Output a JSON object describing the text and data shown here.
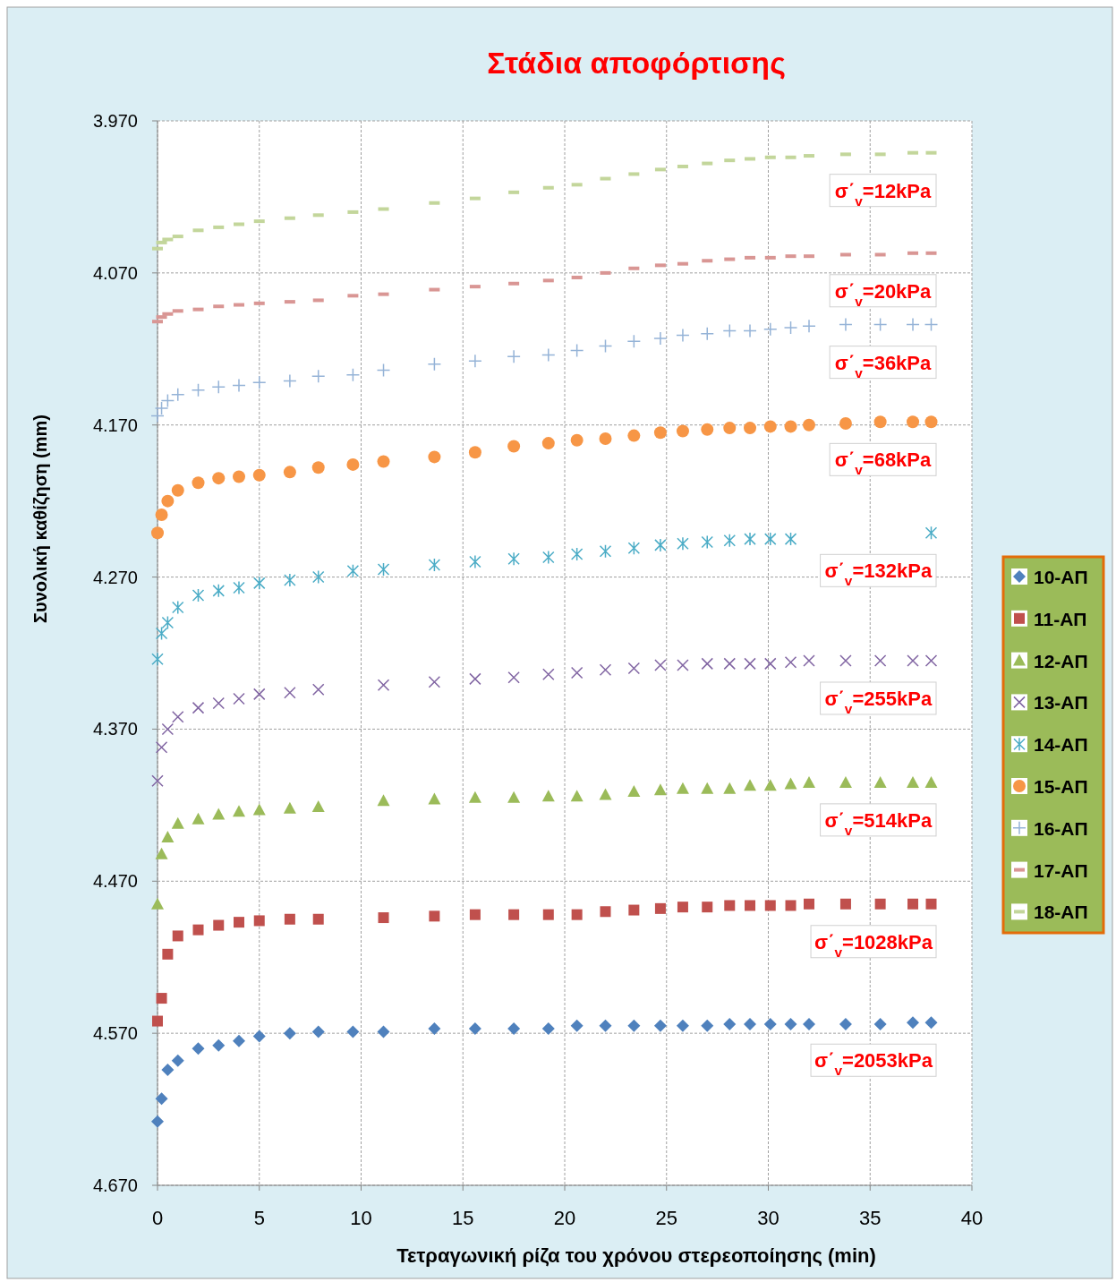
{
  "chart_data": {
    "type": "scatter",
    "title": "Στάδια αποφόρτισης",
    "xlabel": "Τετραγωνική ρίζα του χρόνου στερεοποίησης (min)",
    "ylabel": "Συνολική καθίζηση (mm)",
    "x": [
      0,
      0.2,
      0.5,
      1,
      2,
      3,
      4,
      5,
      6.5,
      7.9,
      9.6,
      11.1,
      13.6,
      15.6,
      17.5,
      19.2,
      20.6,
      22,
      23.4,
      24.7,
      25.8,
      27,
      28.1,
      29.1,
      30.1,
      31.1,
      32,
      33.8,
      35.5,
      37.1,
      38
    ],
    "xlim": [
      0,
      40
    ],
    "xticks": [
      0,
      5,
      10,
      15,
      20,
      25,
      30,
      35,
      40
    ],
    "ylim": [
      4.67,
      3.97
    ],
    "yticks": [
      {
        "value": 3.97,
        "label": "3.970"
      },
      {
        "value": 4.07,
        "label": "4.070"
      },
      {
        "value": 4.17,
        "label": "4.170"
      },
      {
        "value": 4.27,
        "label": "4.270"
      },
      {
        "value": 4.37,
        "label": "4.370"
      },
      {
        "value": 4.47,
        "label": "4.470"
      },
      {
        "value": 4.57,
        "label": "4.570"
      },
      {
        "value": 4.67,
        "label": "4.670"
      }
    ],
    "grid": true,
    "legend": "right",
    "series": [
      {
        "name": "10-ΑΠ",
        "color": "#4f81bd",
        "marker": "diamond",
        "values": [
          4.628,
          4.613,
          4.594,
          4.588,
          4.58,
          4.578,
          4.575,
          4.572,
          4.57,
          4.569,
          4.569,
          4.569,
          4.567,
          4.567,
          4.567,
          4.567,
          4.565,
          4.565,
          4.565,
          4.565,
          4.565,
          4.565,
          4.564,
          4.564,
          4.564,
          4.564,
          4.564,
          4.564,
          4.564,
          4.563,
          4.563
        ]
      },
      {
        "name": "11-ΑΠ",
        "color": "#c0504d",
        "marker": "square",
        "values": [
          4.562,
          4.547,
          4.518,
          4.506,
          4.502,
          4.499,
          4.497,
          4.496,
          4.495,
          4.495,
          null,
          4.494,
          4.493,
          4.492,
          4.492,
          4.492,
          4.492,
          4.49,
          4.489,
          4.488,
          4.487,
          4.487,
          4.486,
          4.486,
          4.486,
          4.486,
          4.485,
          4.485,
          4.485,
          4.485,
          4.485
        ]
      },
      {
        "name": "12-ΑΠ",
        "color": "#9bbb59",
        "marker": "triangle",
        "values": [
          4.485,
          4.452,
          4.441,
          4.432,
          4.429,
          4.426,
          4.424,
          4.423,
          4.422,
          4.421,
          null,
          4.417,
          4.416,
          4.415,
          4.415,
          4.414,
          4.414,
          4.413,
          4.411,
          4.41,
          4.409,
          4.409,
          4.409,
          4.407,
          4.407,
          4.406,
          4.405,
          4.405,
          4.405,
          4.405,
          4.405
        ]
      },
      {
        "name": "13-ΑΠ",
        "color": "#8064a2",
        "marker": "x",
        "values": [
          4.404,
          4.382,
          4.37,
          4.362,
          4.356,
          4.353,
          4.35,
          4.347,
          4.346,
          4.344,
          null,
          4.341,
          4.339,
          4.337,
          4.336,
          4.334,
          4.333,
          4.331,
          4.33,
          4.328,
          4.328,
          4.327,
          4.327,
          4.327,
          4.327,
          4.326,
          4.325,
          4.325,
          4.325,
          4.325,
          4.325
        ]
      },
      {
        "name": "14-ΑΠ",
        "color": "#4bacc6",
        "marker": "cross",
        "values": [
          4.324,
          4.307,
          4.3,
          4.29,
          4.282,
          4.279,
          4.277,
          4.274,
          4.272,
          4.27,
          4.266,
          4.265,
          4.262,
          4.26,
          4.258,
          4.257,
          4.255,
          4.253,
          4.251,
          4.249,
          4.248,
          4.247,
          4.246,
          4.245,
          4.245,
          4.245,
          null,
          null,
          null,
          null,
          4.241
        ]
      },
      {
        "name": "15-ΑΠ",
        "color": "#f79646",
        "marker": "circle",
        "values": [
          4.241,
          4.229,
          4.22,
          4.213,
          4.208,
          4.205,
          4.204,
          4.203,
          4.201,
          4.198,
          4.196,
          4.194,
          4.191,
          4.188,
          4.184,
          4.182,
          4.18,
          4.179,
          4.177,
          4.175,
          4.174,
          4.173,
          4.172,
          4.172,
          4.171,
          4.171,
          4.17,
          4.169,
          4.168,
          4.168,
          4.168
        ]
      },
      {
        "name": "16-ΑΠ",
        "color": "#95b3d7",
        "marker": "plus",
        "values": [
          4.164,
          4.159,
          4.154,
          4.15,
          4.147,
          4.145,
          4.144,
          4.142,
          4.141,
          4.138,
          4.137,
          4.134,
          4.13,
          4.128,
          4.125,
          4.124,
          4.121,
          4.118,
          4.115,
          4.113,
          4.111,
          4.11,
          4.108,
          4.108,
          4.107,
          4.106,
          4.105,
          4.104,
          4.104,
          4.104,
          4.104
        ]
      },
      {
        "name": "17-ΑΠ",
        "color": "#d99694",
        "values": [
          4.102,
          4.099,
          4.097,
          4.095,
          4.094,
          4.092,
          4.091,
          4.09,
          4.089,
          4.088,
          4.085,
          4.084,
          4.081,
          4.079,
          4.077,
          4.075,
          4.073,
          4.07,
          4.067,
          4.065,
          4.064,
          4.062,
          4.061,
          4.06,
          4.06,
          4.059,
          4.059,
          4.058,
          4.058,
          4.057,
          4.057
        ]
      },
      {
        "name": "18-ΑΠ",
        "color": "#c3d69b",
        "values": [
          4.054,
          4.05,
          4.048,
          4.046,
          4.042,
          4.04,
          4.038,
          4.036,
          4.034,
          4.032,
          4.03,
          4.028,
          4.024,
          4.021,
          4.017,
          4.014,
          4.012,
          4.008,
          4.005,
          4.002,
          4.0,
          3.998,
          3.996,
          3.995,
          3.994,
          3.994,
          3.993,
          3.992,
          3.992,
          3.991,
          3.991
        ]
      }
    ],
    "annotations": [
      "σ΄$_{v}$=12kPa",
      "σ΄$_{v}$=20kPa",
      "σ΄$_{v}$=36kPa",
      "σ΄$_{v}$=68kPa",
      "σ΄$_{v}$=132kPa",
      "σ΄$_{v}$=255kPa",
      "σ΄$_{v}$=514kPa",
      "σ΄$_{v}$=1028kPa",
      "σ΄$_{v}$=2053kPa"
    ]
  }
}
